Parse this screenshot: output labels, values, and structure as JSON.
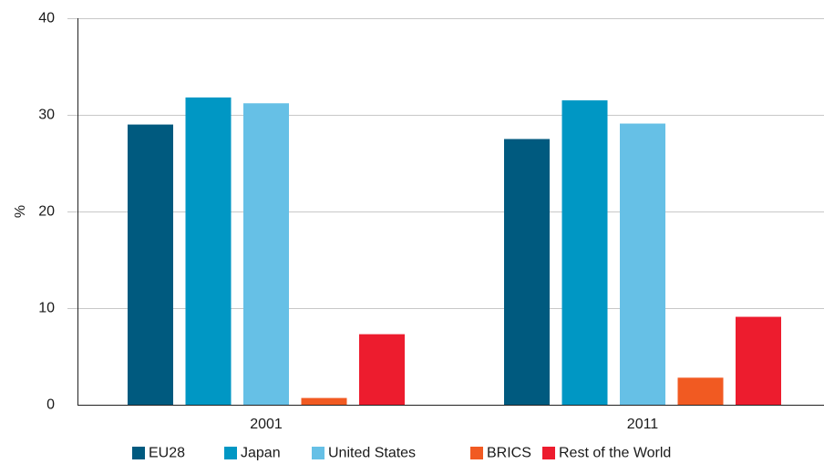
{
  "chart_data": {
    "type": "bar",
    "title": "",
    "xlabel": "",
    "ylabel": "%",
    "ylim": [
      0,
      40
    ],
    "yticks": [
      0,
      10,
      20,
      30,
      40
    ],
    "grid": true,
    "legend_position": "bottom",
    "categories": [
      "2001",
      "2011"
    ],
    "series": [
      {
        "name": "EU28",
        "color": "#005a7f",
        "values": [
          29.0,
          27.5
        ]
      },
      {
        "name": "Japan",
        "color": "#0097c4",
        "values": [
          31.8,
          31.5
        ]
      },
      {
        "name": "United States",
        "color": "#66c0e6",
        "values": [
          31.2,
          29.1
        ]
      },
      {
        "name": "BRICS",
        "color": "#f15a22",
        "values": [
          0.7,
          2.8
        ]
      },
      {
        "name": "Rest of the World",
        "color": "#ed1c2e",
        "values": [
          7.3,
          9.1
        ]
      }
    ]
  }
}
